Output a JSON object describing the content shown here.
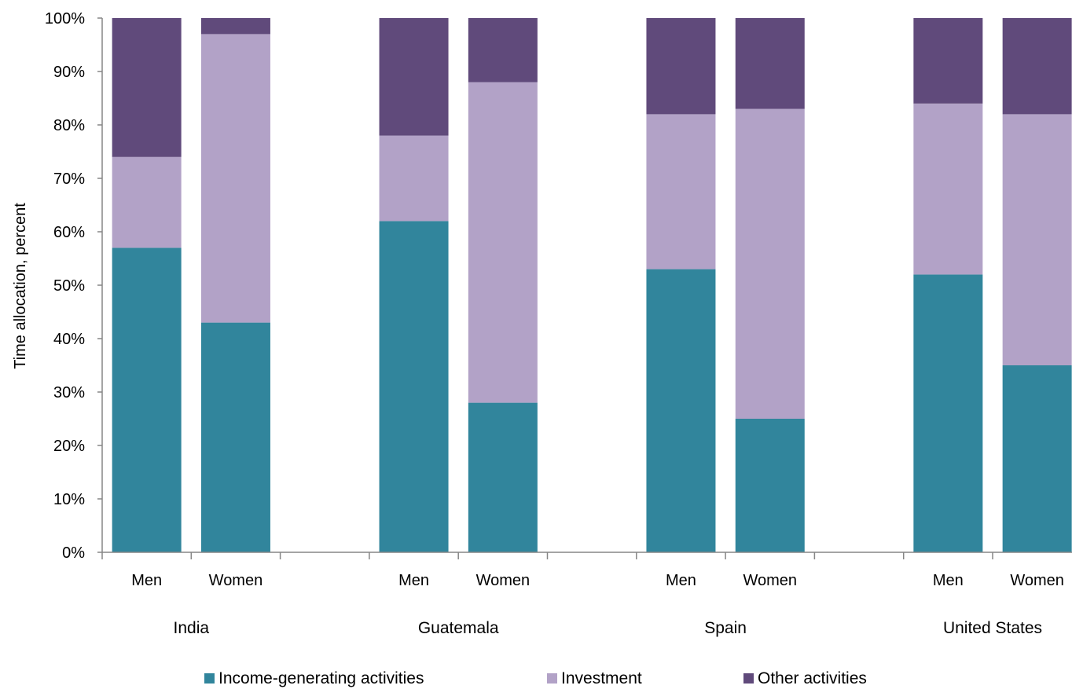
{
  "chart_data": {
    "type": "bar",
    "stacked": true,
    "normalized": true,
    "title": "",
    "xlabel": "",
    "ylabel": "Time allocation, percent",
    "ylim": [
      0,
      100
    ],
    "yticks": [
      "0%",
      "10%",
      "20%",
      "30%",
      "40%",
      "50%",
      "60%",
      "70%",
      "80%",
      "90%",
      "100%"
    ],
    "grid": false,
    "legend_position": "bottom",
    "groups": [
      {
        "name": "India",
        "categories": [
          "Men",
          "Women"
        ]
      },
      {
        "name": "Guatemala",
        "categories": [
          "Men",
          "Women"
        ]
      },
      {
        "name": "Spain",
        "categories": [
          "Men",
          "Women"
        ]
      },
      {
        "name": "United States",
        "categories": [
          "Men",
          "Women"
        ]
      }
    ],
    "series": [
      {
        "name": "Income-generating activities",
        "color": "#31859c",
        "values": [
          57,
          43,
          62,
          28,
          53,
          25,
          52,
          35
        ]
      },
      {
        "name": "Investment",
        "color": "#b2a2c7",
        "values": [
          17,
          54,
          16,
          60,
          29,
          58,
          32,
          47
        ]
      },
      {
        "name": "Other activities",
        "color": "#604a7b",
        "values": [
          26,
          3,
          22,
          12,
          18,
          17,
          16,
          18
        ]
      }
    ]
  }
}
